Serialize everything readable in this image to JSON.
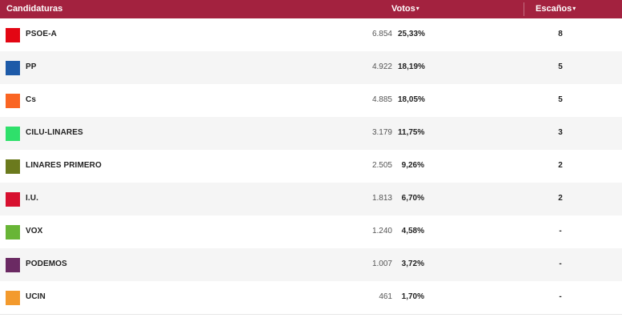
{
  "header": {
    "candidates_label": "Candidaturas",
    "votes_label": "Votos",
    "seats_label": "Escaños",
    "sort_caret": "▾",
    "background_color": "#a3223f"
  },
  "rows": [
    {
      "party": "PSOE-A",
      "votes": "6.854",
      "pct": "25,33%",
      "seats": "8",
      "color": "#e30613"
    },
    {
      "party": "PP",
      "votes": "4.922",
      "pct": "18,19%",
      "seats": "5",
      "color": "#1d5aa8"
    },
    {
      "party": "Cs",
      "votes": "4.885",
      "pct": "18,05%",
      "seats": "5",
      "color": "#fa6523"
    },
    {
      "party": "CILU-LINARES",
      "votes": "3.179",
      "pct": "11,75%",
      "seats": "3",
      "color": "#2fe06b"
    },
    {
      "party": "LINARES PRIMERO",
      "votes": "2.505",
      "pct": "9,26%",
      "seats": "2",
      "color": "#6b7a1d"
    },
    {
      "party": "I.U.",
      "votes": "1.813",
      "pct": "6,70%",
      "seats": "2",
      "color": "#d7102f"
    },
    {
      "party": "VOX",
      "votes": "1.240",
      "pct": "4,58%",
      "seats": "-",
      "color": "#68b536"
    },
    {
      "party": "PODEMOS",
      "votes": "1.007",
      "pct": "3,72%",
      "seats": "-",
      "color": "#6b2a63"
    },
    {
      "party": "UCIN",
      "votes": "461",
      "pct": "1,70%",
      "seats": "-",
      "color": "#f39a2d"
    }
  ]
}
